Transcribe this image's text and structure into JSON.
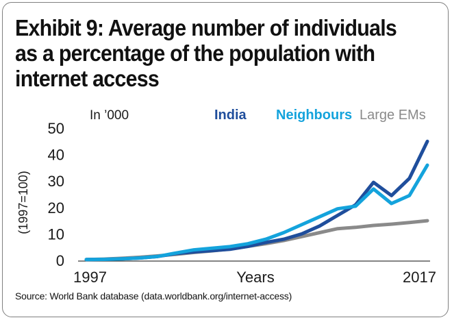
{
  "title_lines": [
    "Exhibit 9: Average number of individuals",
    "as a percentage of the population with",
    "internet access"
  ],
  "source": "Source: World Bank database (data.worldbank.org/internet-access)",
  "colors": {
    "india": "#1f4e9c",
    "neighbours": "#14a3dc",
    "large_ems": "#8a8a8a",
    "text": "#1a1a1a"
  },
  "chart_data": {
    "type": "line",
    "unit_note": "In ’000",
    "ylabel": "(1997=100)",
    "xlabel": "Years",
    "x_tick_labels": [
      "1997",
      "2017"
    ],
    "y_ticks": [
      0,
      10,
      20,
      30,
      40,
      50
    ],
    "ylim": [
      0,
      50
    ],
    "xlim": [
      1997,
      2017
    ],
    "x": [
      1997,
      1998,
      1999,
      2000,
      2001,
      2002,
      2003,
      2004,
      2005,
      2006,
      2007,
      2008,
      2009,
      2010,
      2011,
      2012,
      2013,
      2014,
      2015,
      2016,
      2017
    ],
    "grid": false,
    "legend_position": "top",
    "series": [
      {
        "name": "India",
        "color_key": "india",
        "values": [
          0.3,
          0.4,
          0.6,
          0.9,
          1.5,
          2.6,
          3.2,
          3.7,
          4.2,
          5.3,
          6.8,
          8.0,
          10.0,
          13.0,
          17.0,
          21.0,
          29.5,
          24.5,
          31.0,
          45.0,
          null
        ]
      },
      {
        "name": "Neighbours",
        "color_key": "neighbours",
        "values": [
          0.3,
          0.4,
          0.6,
          0.9,
          1.5,
          2.8,
          4.0,
          4.6,
          5.2,
          6.3,
          8.0,
          10.5,
          13.5,
          16.5,
          19.5,
          20.5,
          27.0,
          21.5,
          24.5,
          36.0,
          null
        ]
      },
      {
        "name": "Large EMs",
        "color_key": "large_ems",
        "values": [
          0.3,
          0.5,
          0.8,
          1.2,
          1.7,
          2.3,
          3.0,
          3.6,
          4.3,
          5.3,
          6.3,
          7.5,
          9.0,
          10.5,
          12.0,
          12.5,
          13.2,
          13.7,
          14.3,
          15.0,
          null
        ]
      }
    ]
  }
}
